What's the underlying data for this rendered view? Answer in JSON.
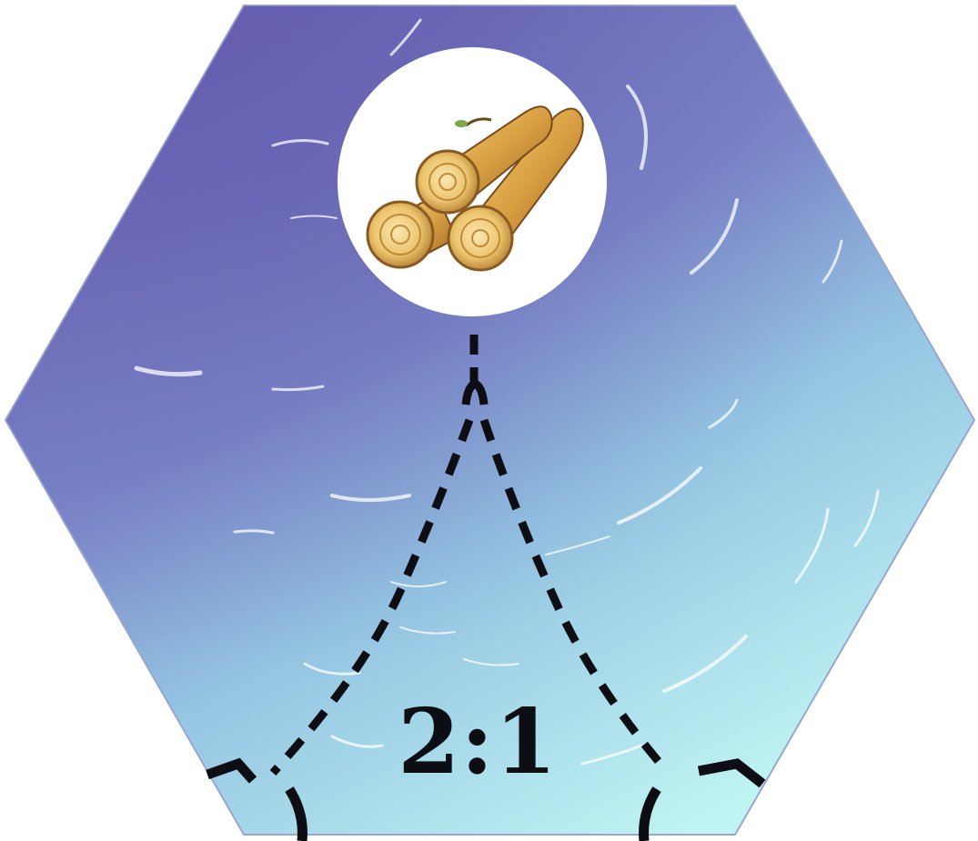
{
  "tile": {
    "type": "harbor",
    "terrain": "sea",
    "resource_icon": "lumber-logs-icon",
    "trade_ratio": "2:1"
  },
  "colors": {
    "sea_top": "#6f6fb8",
    "sea_bottom": "#b8f0f0",
    "medallion": "#ffffff",
    "ink": "#0d0d14",
    "wood": "#d9a94a"
  }
}
